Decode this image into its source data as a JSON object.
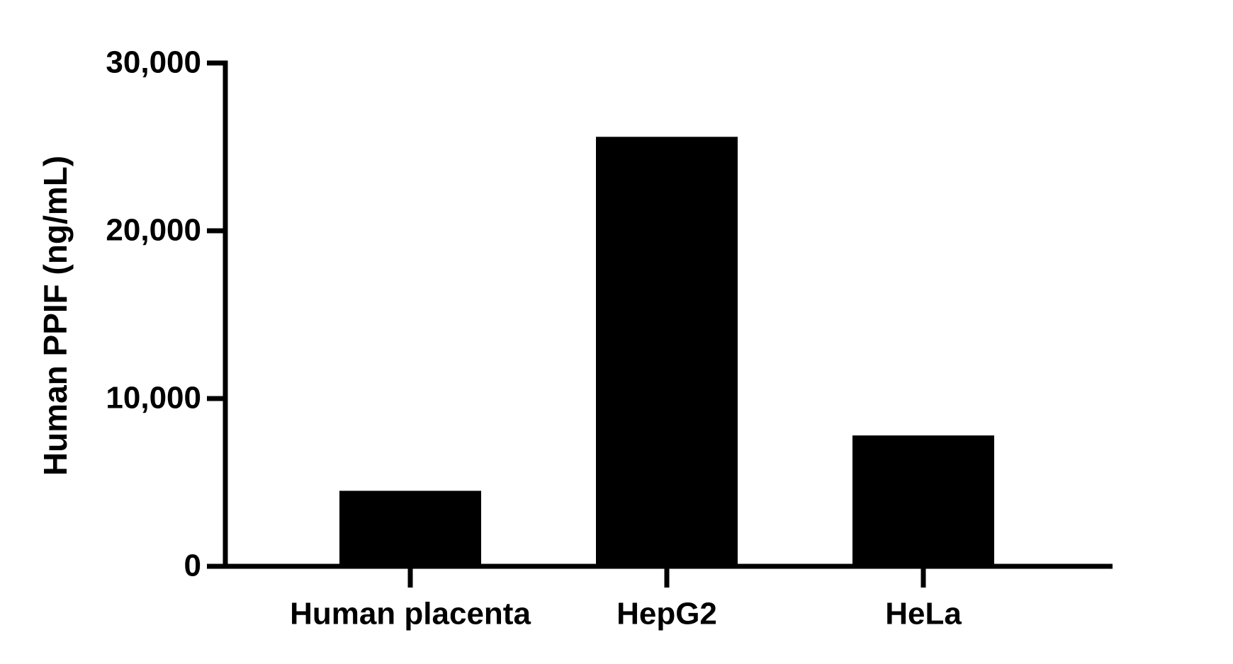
{
  "chart_data": {
    "type": "bar",
    "y_label": "Human PPIF (ng/mL)",
    "categories": [
      "Human placenta",
      "HepG2",
      "HeLa"
    ],
    "values": [
      4500,
      25600,
      7800
    ],
    "color": "#000000",
    "ylim": [
      0,
      30000
    ],
    "yticks": [
      0,
      {
        "value": 10000,
        "label": "10,000"
      },
      {
        "value": 20000,
        "label": "20,000"
      },
      {
        "value": 30000,
        "label": "30,000"
      }
    ]
  }
}
